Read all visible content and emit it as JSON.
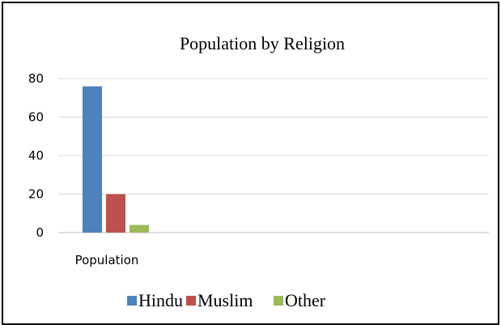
{
  "chart_data": {
    "type": "bar",
    "title": "Population by Religion",
    "categories": [
      "Population"
    ],
    "series": [
      {
        "name": "Hindu",
        "values": [
          76
        ],
        "color": "#4F81BD"
      },
      {
        "name": "Muslim",
        "values": [
          20
        ],
        "color": "#C0504D"
      },
      {
        "name": "Other",
        "values": [
          4
        ],
        "color": "#9BBB59"
      }
    ],
    "xlabel": "",
    "ylabel": "",
    "ylim": [
      0,
      80
    ],
    "yticks": [
      0,
      20,
      40,
      60,
      80
    ],
    "grid": true,
    "legend_position": "bottom"
  }
}
